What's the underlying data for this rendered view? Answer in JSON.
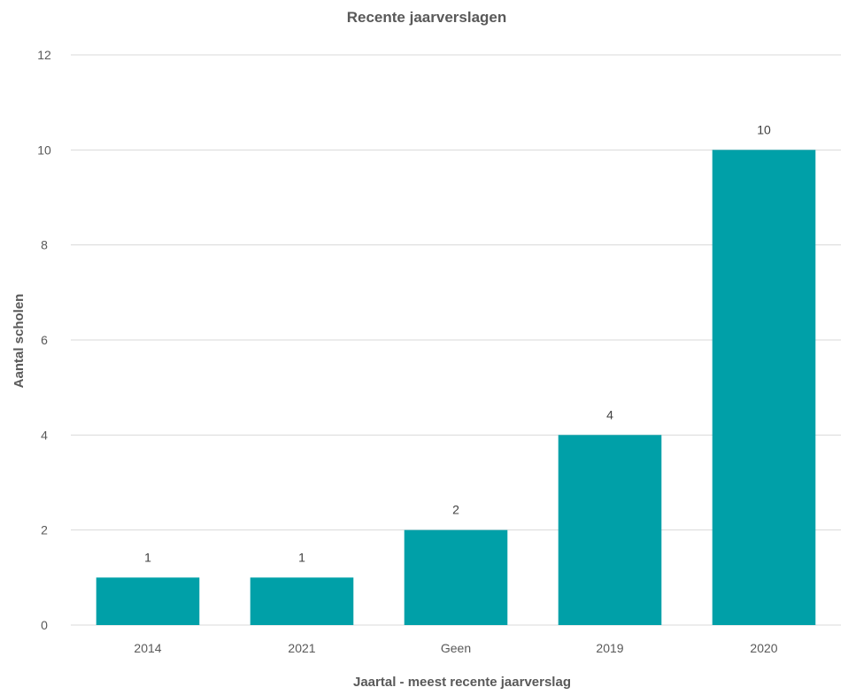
{
  "chart_data": {
    "type": "bar",
    "title": "Recente jaarverslagen",
    "xlabel": "Jaartal - meest recente jaarverslag",
    "ylabel": "Aantal scholen",
    "categories": [
      "2014",
      "2021",
      "Geen",
      "2019",
      "2020"
    ],
    "values": [
      1,
      1,
      2,
      4,
      10
    ],
    "data_labels": [
      "1",
      "1",
      "2",
      "4",
      "10"
    ],
    "ylim": [
      0,
      12
    ],
    "yticks": [
      0,
      2,
      4,
      6,
      8,
      10,
      12
    ],
    "grid": true,
    "legend": "none",
    "bar_color": "#00A0A8"
  }
}
